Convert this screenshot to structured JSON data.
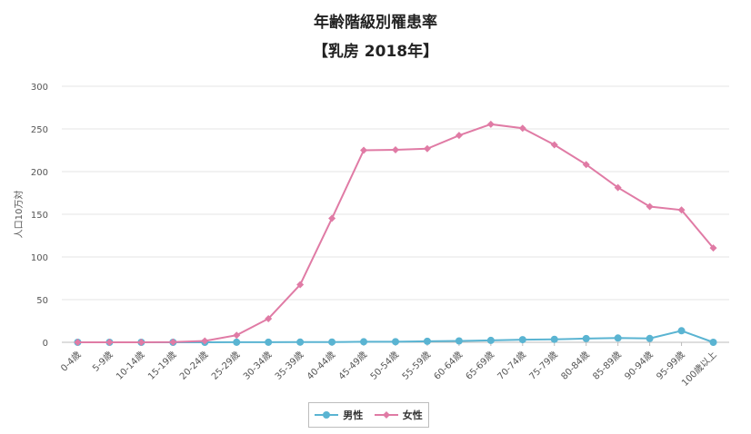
{
  "chart_data": {
    "type": "line",
    "title": "年齢階級別罹患率",
    "subtitle": "【乳房 2018年】",
    "ylabel": "人口10万対",
    "xlabel": "",
    "ylim": [
      0,
      300
    ],
    "yticks": [
      0,
      50,
      100,
      150,
      200,
      250,
      300
    ],
    "grid": true,
    "legend_position": "bottom-center",
    "categories": [
      "0-4歳",
      "5-9歳",
      "10-14歳",
      "15-19歳",
      "20-24歳",
      "25-29歳",
      "30-34歳",
      "35-39歳",
      "40-44歳",
      "45-49歳",
      "50-54歳",
      "55-59歳",
      "60-64歳",
      "65-69歳",
      "70-74歳",
      "75-79歳",
      "80-84歳",
      "85-89歳",
      "90-94歳",
      "95-99歳",
      "100歳以上"
    ],
    "series": [
      {
        "name": "男性",
        "color": "#5ab4d2",
        "marker": "circle",
        "values": [
          0,
          0,
          0,
          0,
          0,
          0.1,
          0.1,
          0.2,
          0.3,
          0.6,
          0.7,
          1.2,
          1.6,
          2.2,
          3.1,
          3.5,
          4.4,
          5.0,
          4.5,
          13.5,
          0
        ]
      },
      {
        "name": "女性",
        "color": "#e07ba5",
        "marker": "diamond",
        "values": [
          0,
          0,
          0,
          0.3,
          1.6,
          8.3,
          27.7,
          67.5,
          145.2,
          225.0,
          225.5,
          226.8,
          242.4,
          255.5,
          250.8,
          231.4,
          208.3,
          181.3,
          159.0,
          155.0,
          110.5
        ]
      }
    ]
  }
}
